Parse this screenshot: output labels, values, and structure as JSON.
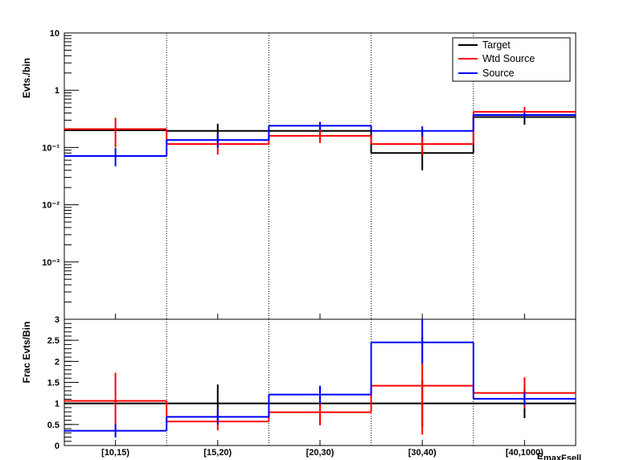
{
  "chart_data": [
    {
      "type": "line",
      "ylabel": "Evts./bin",
      "yscale": "log",
      "ylim": [
        0.0001,
        10
      ],
      "ytick_labels": [
        "10",
        "1",
        "10⁻¹",
        "10⁻²",
        "10⁻³"
      ],
      "categories": [
        "[10,15)",
        "[15,20)",
        "[20,30)",
        "[30,40)",
        "[40,1000)"
      ],
      "legend": {
        "position": "top-right",
        "entries": [
          "Target",
          "Wtd Source",
          "Source"
        ]
      },
      "series": [
        {
          "name": "Target",
          "color": "#000000",
          "values": [
            0.2,
            0.195,
            0.195,
            0.08,
            0.34
          ],
          "err_low": [
            0.2,
            0.115,
            0.0,
            0.04,
            0.25
          ],
          "err_high": [
            0.2,
            0.26,
            0.0,
            0.21,
            0.46
          ]
        },
        {
          "name": "Wtd Source",
          "color": "#ff0000",
          "values": [
            0.21,
            0.115,
            0.16,
            0.115,
            0.42
          ],
          "err_low": [
            0.1,
            0.075,
            0.12,
            0.075,
            0.33
          ],
          "err_high": [
            0.33,
            0.165,
            0.21,
            0.165,
            0.51
          ]
        },
        {
          "name": "Source",
          "color": "#0000ff",
          "values": [
            0.071,
            0.135,
            0.24,
            0.195,
            0.37
          ],
          "err_low": [
            0.047,
            0.1,
            0.2,
            0.155,
            0.33
          ],
          "err_high": [
            0.098,
            0.175,
            0.28,
            0.235,
            0.41
          ]
        }
      ]
    },
    {
      "type": "line",
      "ylabel": "Frac Evts/Bin",
      "xlabel": "E_maxFsell",
      "ylim": [
        0,
        3
      ],
      "ytick_labels": [
        "0",
        "0.5",
        "1",
        "1.5",
        "2",
        "2.5",
        "3"
      ],
      "categories": [
        "[10,15)",
        "[15,20)",
        "[20,30)",
        "[30,40)",
        "[40,1000)"
      ],
      "series": [
        {
          "name": "Target",
          "color": "#000000",
          "values": [
            1.0,
            1.0,
            1.0,
            1.0,
            1.0
          ],
          "err_low": [
            1.0,
            0.55,
            1.0,
            0.45,
            0.65
          ],
          "err_high": [
            1.0,
            1.45,
            1.0,
            1.55,
            1.35
          ]
        },
        {
          "name": "Wtd Source",
          "color": "#ff0000",
          "values": [
            1.06,
            0.57,
            0.79,
            1.42,
            1.25
          ],
          "err_low": [
            0.45,
            0.36,
            0.48,
            0.26,
            0.88
          ],
          "err_high": [
            1.73,
            0.78,
            1.1,
            2.58,
            1.62
          ]
        },
        {
          "name": "Source",
          "color": "#0000ff",
          "values": [
            0.35,
            0.68,
            1.21,
            2.45,
            1.11
          ],
          "err_low": [
            0.19,
            0.5,
            1.0,
            1.95,
            0.95
          ],
          "err_high": [
            0.51,
            0.86,
            1.42,
            3.0,
            1.27
          ]
        }
      ]
    }
  ]
}
